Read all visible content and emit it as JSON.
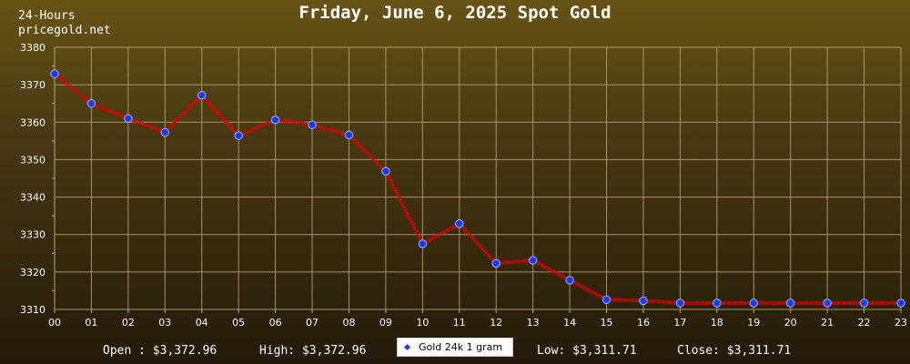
{
  "header": {
    "title": "Friday, June 6, 2025 Spot Gold",
    "label_line1": "24-Hours",
    "label_line2": "pricegold.net"
  },
  "colors": {
    "line": "#dd0000",
    "marker": "#1a3bff",
    "grid": "#b9a77a",
    "axis_text": "#ffffff"
  },
  "footer": {
    "open": "Open : $3,372.96",
    "high": "High: $3,372.96",
    "legend": "Gold 24k 1 gram",
    "low": "Low: $3,311.71",
    "close": "Close: $3,311.71"
  },
  "chart_data": {
    "type": "line",
    "title": "Friday, June 6, 2025 Spot Gold",
    "categories": [
      "00",
      "01",
      "02",
      "03",
      "04",
      "05",
      "06",
      "07",
      "08",
      "09",
      "10",
      "11",
      "12",
      "13",
      "14",
      "15",
      "16",
      "17",
      "18",
      "19",
      "20",
      "21",
      "22",
      "23"
    ],
    "series": [
      {
        "name": "Gold 24k 1 gram",
        "values": [
          3372.9,
          3365.0,
          3361.0,
          3357.3,
          3367.2,
          3356.4,
          3360.6,
          3359.3,
          3356.6,
          3346.9,
          3327.5,
          3332.9,
          3322.3,
          3323.1,
          3317.8,
          3312.6,
          3312.3,
          3311.7,
          3311.7,
          3311.7,
          3311.7,
          3311.7,
          3311.7,
          3311.7
        ]
      }
    ],
    "ylim": [
      3310,
      3380
    ],
    "yticks": [
      3310,
      3320,
      3330,
      3340,
      3350,
      3360,
      3370,
      3380
    ],
    "grid": true,
    "legend": "bottom-center"
  }
}
